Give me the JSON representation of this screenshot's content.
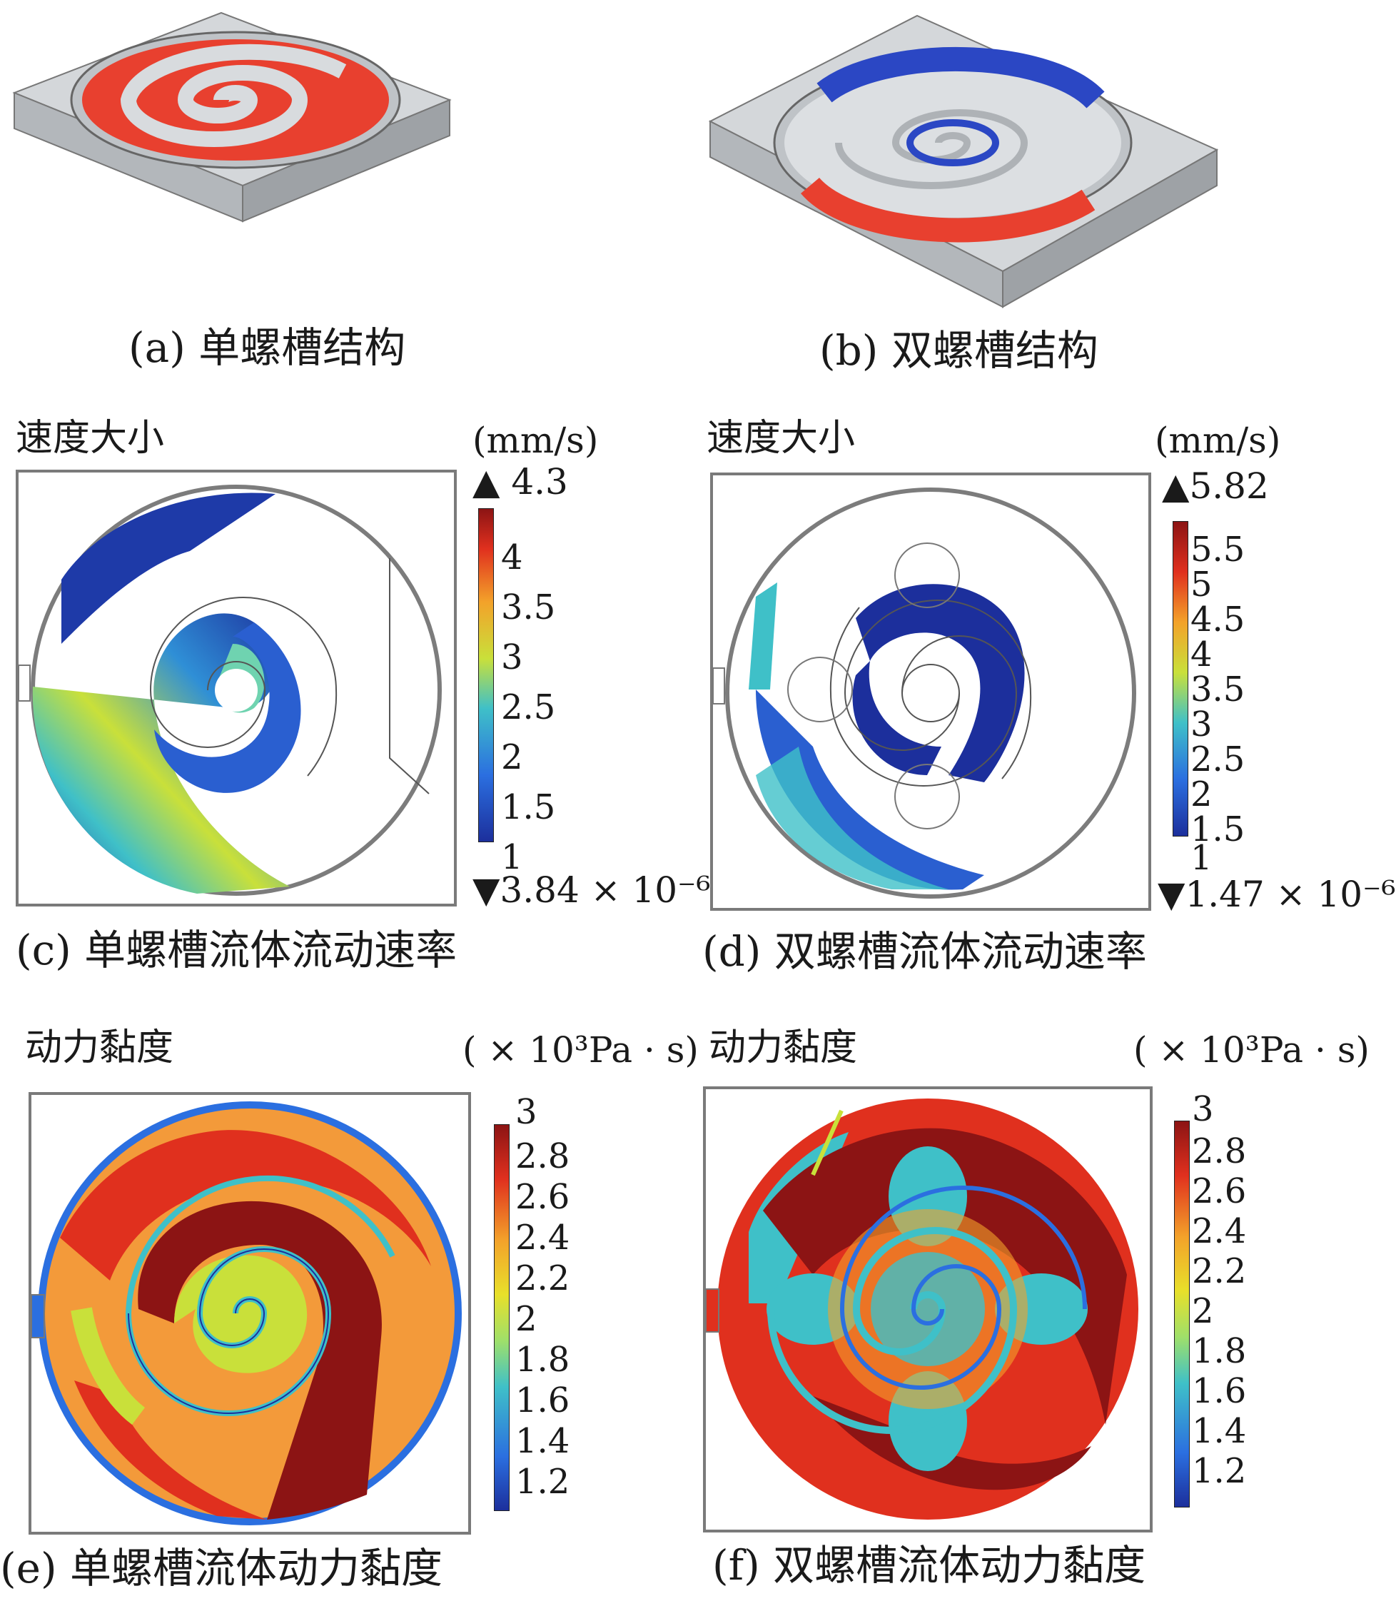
{
  "captions": {
    "a": "(a) 单螺槽结构",
    "b": "(b) 双螺槽结构",
    "c": "(c) 单螺槽流体流动速率",
    "d": "(d) 双螺槽流体流动速率",
    "e": "(e) 单螺槽流体动力黏度",
    "f": "(f) 双螺槽流体动力黏度"
  },
  "velocity": {
    "label": "速度大小",
    "unit": "(mm/s)",
    "left": {
      "max": "▲ 4.3",
      "min": "▼3.84 × 10⁻⁶",
      "ticks": [
        "4",
        "3.5",
        "3",
        "2.5",
        "2",
        "1.5",
        "1"
      ]
    },
    "right": {
      "max": "▲5.82",
      "min": "▼1.47 × 10⁻⁶",
      "ticks": [
        "5.5",
        "5",
        "4.5",
        "4",
        "3.5",
        "3",
        "2.5",
        "2",
        "1.5",
        "1"
      ]
    }
  },
  "viscosity": {
    "label": "动力黏度",
    "unit": "( × 10³Pa · s)",
    "ticks": [
      "3",
      "2.8",
      "2.6",
      "2.4",
      "2.2",
      "2",
      "1.8",
      "1.6",
      "1.4",
      "1.2"
    ]
  },
  "colors": {
    "plate": "#c9cdd1",
    "fluid_red": "#e8402f",
    "fluid_blue": "#2b47c4",
    "deep_blue": "#1c2f9c",
    "dark_red": "#8c1414"
  }
}
